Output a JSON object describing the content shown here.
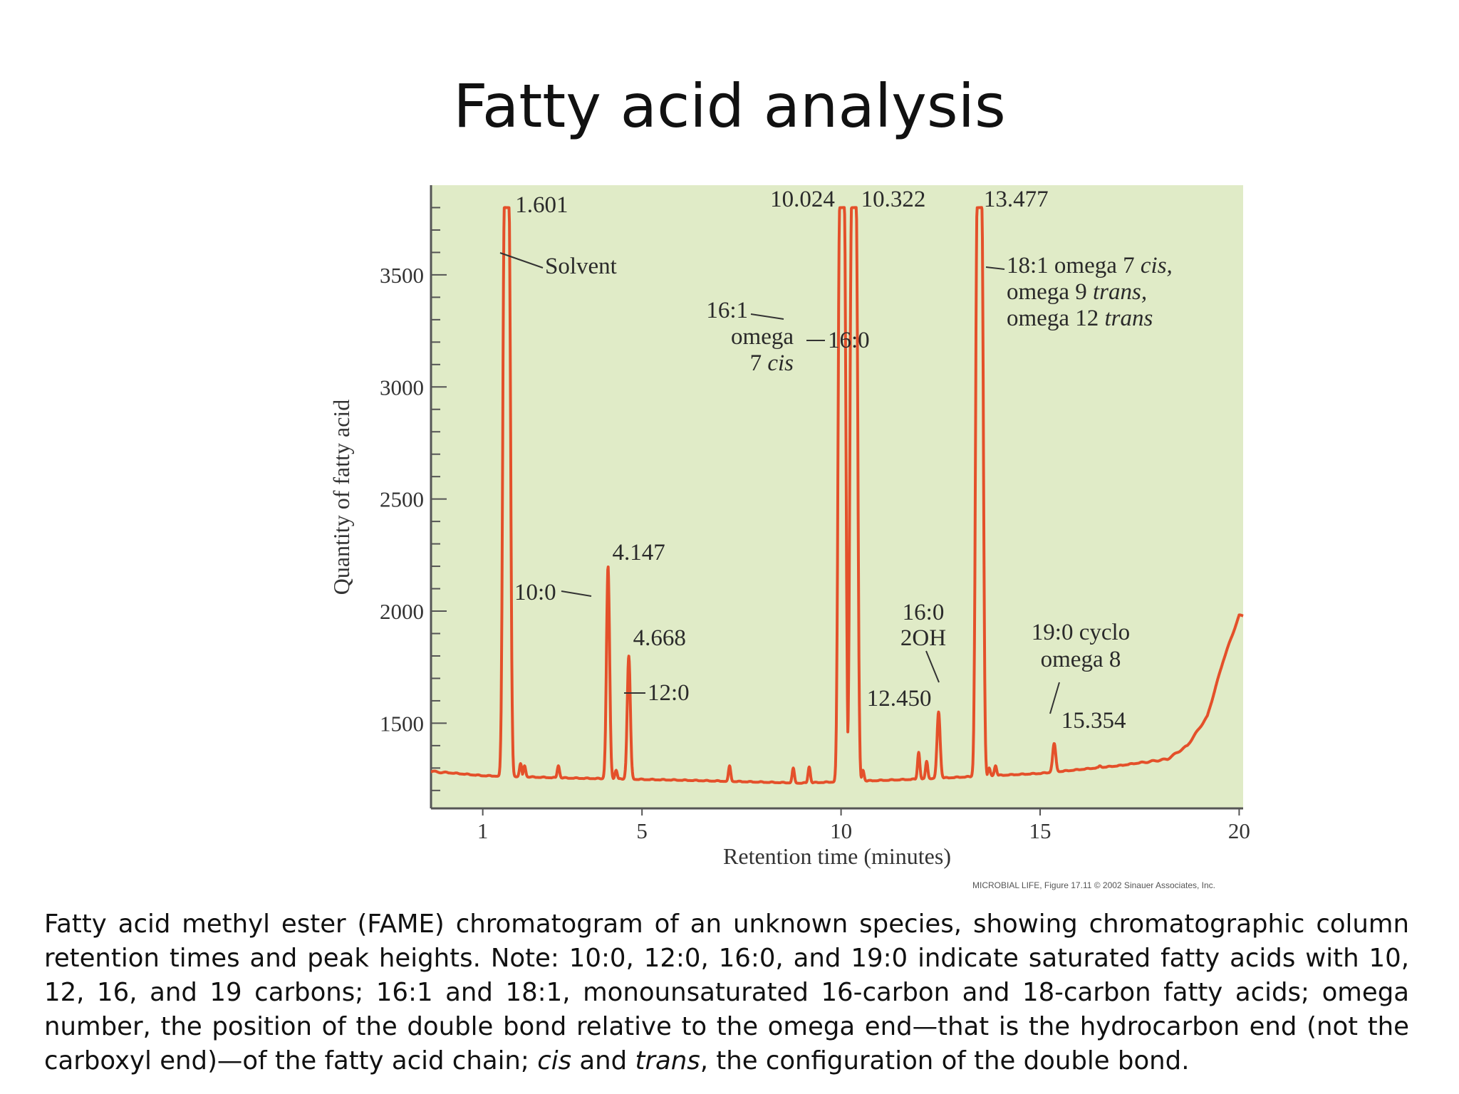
{
  "page": {
    "title": "Fatty acid analysis",
    "credit": "MICROBIAL LIFE, Figure 17.11 © 2002 Sinauer Associates, Inc.",
    "caption": [
      {
        "text": "Fatty acid methyl ester (FAME) chromatogram of an unknown species, showing chromatographic column retention times and peak heights. Note: 10:0, 12:0, 16:0, and 19:0 indicate saturated fatty acids with 10, 12, 16, and 19 carbons; 16:1 and 18:1, monounsaturated 16-carbon and 18-carbon fatty acids; omega number, the position of the double bond relative to the omega end—that is the hydrocarbon end (not the carboxyl end)—of the fatty acid chain; ",
        "italic": false
      },
      {
        "text": "cis",
        "italic": true
      },
      {
        "text": " and ",
        "italic": false
      },
      {
        "text": "trans",
        "italic": true
      },
      {
        "text": ", the configuration of the double bond.",
        "italic": false
      }
    ]
  },
  "colors": {
    "plot_bg": "#e0ebc7",
    "trace": "#e4502a",
    "axis": "#555555"
  },
  "chart_data": {
    "type": "line",
    "xlabel": "Retention time (minutes)",
    "ylabel": "Quantity of fatty acid",
    "xlim": [
      -0.3,
      20.1
    ],
    "ylim": [
      1120,
      3900
    ],
    "xticks": [
      {
        "value": 1,
        "label": "1"
      },
      {
        "value": 5,
        "label": "5"
      },
      {
        "value": 10,
        "label": "10"
      },
      {
        "value": 15,
        "label": "15"
      },
      {
        "value": 20,
        "label": "20"
      }
    ],
    "yticks": [
      1500,
      2000,
      2500,
      3000,
      3500
    ],
    "y_minor_step": 100,
    "grid": false,
    "baseline": [
      [
        -0.3,
        1285
      ],
      [
        1.0,
        1265
      ],
      [
        3.0,
        1255
      ],
      [
        6.0,
        1245
      ],
      [
        9.0,
        1232
      ],
      [
        12.0,
        1250
      ],
      [
        15.0,
        1275
      ],
      [
        17.0,
        1310
      ],
      [
        18.2,
        1340
      ],
      [
        18.7,
        1400
      ],
      [
        19.2,
        1530
      ],
      [
        19.6,
        1780
      ],
      [
        20.0,
        1980
      ]
    ],
    "peaks": [
      {
        "rt": 1.601,
        "height": 3800,
        "label": "1.601",
        "compound": "Solvent"
      },
      {
        "rt": 4.147,
        "height": 2200,
        "label": "4.147",
        "compound": "10:0"
      },
      {
        "rt": 4.668,
        "height": 1800,
        "label": "4.668",
        "compound": "12:0"
      },
      {
        "rt": 10.024,
        "height": 3800,
        "label": "10.024",
        "compound": "16:1 omega 7 cis"
      },
      {
        "rt": 10.322,
        "height": 3800,
        "label": "10.322",
        "compound": "16:0"
      },
      {
        "rt": 12.45,
        "height": 1550,
        "label": "12.450",
        "compound": "16:0 2OH"
      },
      {
        "rt": 13.477,
        "height": 3800,
        "label": "13.477",
        "compound": "18:1 omega 7 cis, omega 9 trans, omega 12 trans"
      },
      {
        "rt": 15.354,
        "height": 1410,
        "label": "15.354",
        "compound": "19:0 cyclo omega 8"
      }
    ],
    "minor_peaks": [
      {
        "rt": 1.95,
        "height": 1320
      },
      {
        "rt": 2.05,
        "height": 1310
      },
      {
        "rt": 2.9,
        "height": 1310
      },
      {
        "rt": 4.35,
        "height": 1290
      },
      {
        "rt": 7.2,
        "height": 1310
      },
      {
        "rt": 8.8,
        "height": 1300
      },
      {
        "rt": 9.2,
        "height": 1305
      },
      {
        "rt": 10.55,
        "height": 1290
      },
      {
        "rt": 11.95,
        "height": 1370
      },
      {
        "rt": 12.15,
        "height": 1330
      },
      {
        "rt": 13.72,
        "height": 1300
      },
      {
        "rt": 13.88,
        "height": 1310
      },
      {
        "rt": 16.5,
        "height": 1310
      }
    ],
    "annotations": {
      "solvent": "Solvent",
      "c10": "10:0",
      "c12": "12:0",
      "c161_a": "16:1",
      "c161_b": "omega",
      "c161_c": "7",
      "c161_d": "cis",
      "c160": "16:0",
      "c160oh_a": "16:0",
      "c160oh_b": "2OH",
      "c181_a": "18:1 omega 7",
      "c181_b": "cis,",
      "c181_c": "omega 9",
      "c181_d": "trans,",
      "c181_e": "omega 12",
      "c181_f": "trans",
      "c190_a": "19:0 cyclo",
      "c190_b": "omega 8"
    }
  }
}
